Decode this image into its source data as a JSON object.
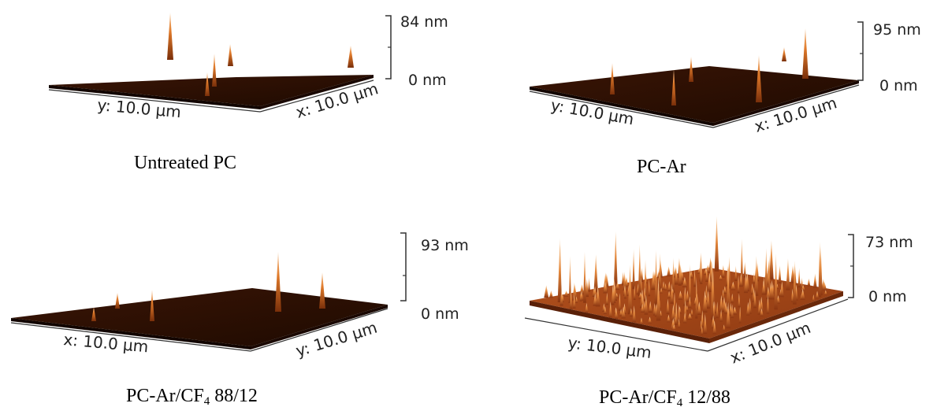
{
  "panels": [
    {
      "id": "untreated",
      "scale_max": "84 nm",
      "scale_min": "0 nm",
      "axis_left": "y: 10.0 µm",
      "axis_right": "x: 10.0 µm",
      "caption_main": "Untreated PC",
      "caption_sub": "",
      "caption_tail": ""
    },
    {
      "id": "pc-ar",
      "scale_max": "95 nm",
      "scale_min": "0 nm",
      "axis_left": "y: 10.0 µm",
      "axis_right": "x: 10.0 µm",
      "caption_main": "PC-Ar",
      "caption_sub": "",
      "caption_tail": ""
    },
    {
      "id": "pc-ar-cf4-88-12",
      "scale_max": "93 nm",
      "scale_min": "0 nm",
      "axis_left": "x: 10.0 µm",
      "axis_right": "y: 10.0 µm",
      "caption_main": "PC-Ar/CF",
      "caption_sub": "4",
      "caption_tail": " 88/12"
    },
    {
      "id": "pc-ar-cf4-12-88",
      "scale_max": "73 nm",
      "scale_min": "0 nm",
      "axis_left": "y: 10.0 µm",
      "axis_right": "x: 10.0 µm",
      "caption_main": "PC-Ar/CF",
      "caption_sub": "4",
      "caption_tail": " 12/88"
    }
  ],
  "colors": {
    "surface_dark": "#2b0f02",
    "surface_mid": "#7a2f0a",
    "peak": "#e07a2a",
    "peak_tip": "#f6c89a",
    "rough_surface": "#b4521e"
  }
}
